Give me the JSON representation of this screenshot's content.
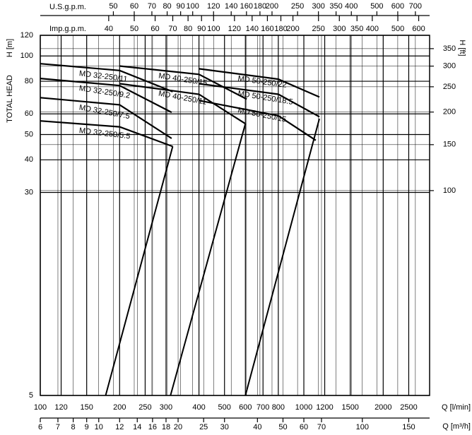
{
  "chart_data": {
    "type": "line",
    "y_title": "TOTAL HEAD",
    "xscale": "log",
    "yscale": "log",
    "grid": true,
    "xlabel": "Q [l/min]",
    "xlim": [
      100,
      3000
    ],
    "xticks": [
      100,
      120,
      150,
      200,
      250,
      300,
      400,
      500,
      600,
      700,
      800,
      1000,
      1200,
      1500,
      2000,
      2500
    ],
    "x2label": "Q [m³/h]",
    "x2lim": [
      6,
      180
    ],
    "x2ticks": [
      6,
      7,
      8,
      9,
      10,
      12,
      14,
      16,
      18,
      20,
      25,
      30,
      40,
      50,
      60,
      70,
      100,
      150
    ],
    "x3label": "U.S.g.p.m.",
    "x3lim": [
      26.4,
      792.6
    ],
    "x3ticks": [
      50,
      60,
      70,
      80,
      90,
      100,
      120,
      140,
      160,
      180,
      200,
      250,
      300,
      350,
      400,
      500,
      600,
      700
    ],
    "x4label": "Imp.g.p.m.",
    "x4lim": [
      22,
      660
    ],
    "x4ticks": [
      40,
      50,
      60,
      70,
      80,
      90,
      100,
      120,
      140,
      160,
      180,
      200,
      250,
      300,
      350,
      400,
      500,
      600
    ],
    "ylabel": "H [m]",
    "ylim": [
      5,
      120
    ],
    "yticks": [
      5,
      30,
      40,
      50,
      60,
      80,
      100,
      120
    ],
    "y2label": "H [ft]",
    "y2lim": [
      16.4,
      393.7
    ],
    "y2ticks": [
      100,
      150,
      200,
      250,
      300,
      350
    ],
    "series": [
      {
        "name": "MD 32-250/11",
        "color": "#000000",
        "x": [
          100,
          200,
          318
        ],
        "values": [
          93.4,
          88,
          73
        ]
      },
      {
        "name": "MD 32-250/9.2",
        "color": "#000000",
        "x": [
          100,
          200,
          315
        ],
        "values": [
          82,
          77,
          60.8
        ]
      },
      {
        "name": "MD 32-250/7.5",
        "color": "#000000",
        "x": [
          100,
          200,
          315
        ],
        "values": [
          69.2,
          65,
          48.3
        ]
      },
      {
        "name": "MD 32-250/5.5",
        "color": "#000000",
        "x": [
          100,
          200,
          318
        ],
        "values": [
          56.4,
          53.5,
          45
        ]
      },
      {
        "name": "MD 40-250/15",
        "color": "#000000",
        "x": [
          200,
          400,
          607
        ],
        "values": [
          91.5,
          85,
          68.3
        ]
      },
      {
        "name": "MD 40-250/11",
        "color": "#000000",
        "x": [
          200,
          400,
          600
        ],
        "values": [
          78.3,
          71.3,
          55
        ]
      },
      {
        "name": "MD 50-250/22",
        "color": "#000000",
        "x": [
          400,
          800,
          1145
        ],
        "values": [
          89.3,
          81.5,
          69.6
        ]
      },
      {
        "name": "MD 50-250/18.5",
        "color": "#000000",
        "x": [
          400,
          800,
          1145
        ],
        "values": [
          78.3,
          71.3,
          58.5
        ]
      },
      {
        "name": "MD 50-250/15",
        "color": "#000000",
        "x": [
          400,
          800,
          1110
        ],
        "values": [
          67.5,
          59,
          47.5
        ]
      }
    ],
    "lines": [
      {
        "x": [
          177,
          318
        ],
        "values": [
          5,
          45
        ]
      },
      {
        "x": [
          312,
          600
        ],
        "values": [
          5,
          55
        ]
      },
      {
        "x": [
          600,
          1145
        ],
        "values": [
          5,
          57.5
        ]
      }
    ]
  }
}
